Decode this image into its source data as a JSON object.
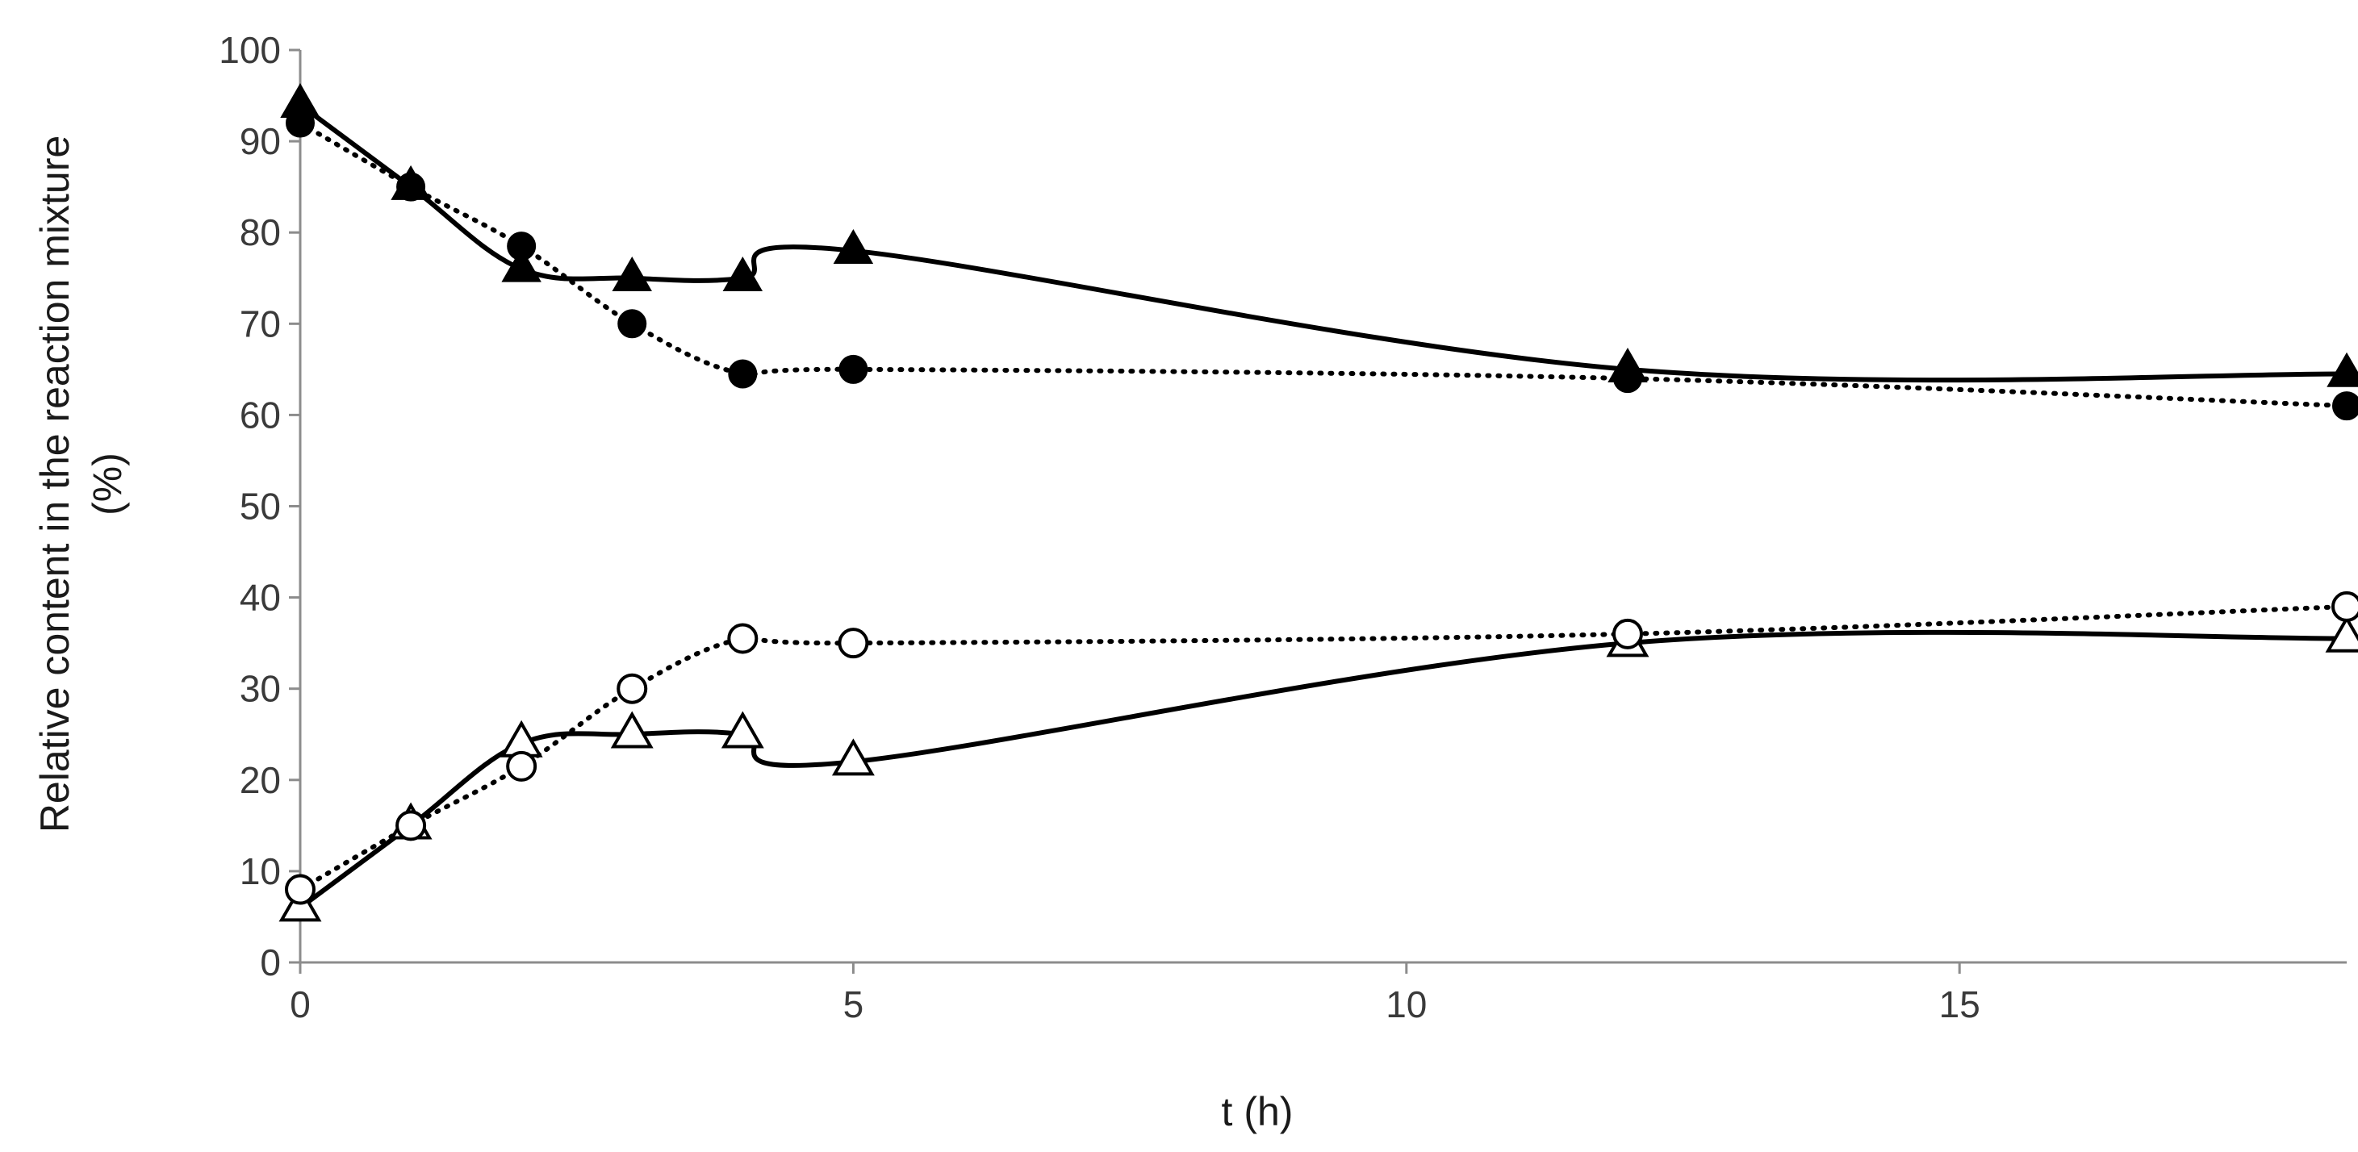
{
  "chart_data": {
    "type": "line",
    "title": "",
    "xlabel": "t (h)",
    "ylabel_line1": "Relative content in the reaction mixture",
    "ylabel_line2": "(%)",
    "xlim": [
      0,
      18.5
    ],
    "ylim": [
      0,
      100
    ],
    "x_ticks": [
      0,
      5,
      10,
      15
    ],
    "y_ticks": [
      0,
      10,
      20,
      30,
      40,
      50,
      60,
      70,
      80,
      90,
      100
    ],
    "grid": false,
    "legend": "none",
    "colors": {
      "series": "#000000",
      "axis": "#8c8c8c",
      "open_fill": "#ffffff"
    },
    "series": [
      {
        "marker": "filled-triangle",
        "line": "solid",
        "x": [
          0,
          1,
          2,
          3,
          4,
          5,
          12,
          18.5
        ],
        "y": [
          94,
          85,
          76,
          75,
          75,
          78,
          65,
          64.5
        ]
      },
      {
        "marker": "filled-circle",
        "line": "dotted",
        "x": [
          0,
          1,
          2,
          3,
          4,
          5,
          12,
          18.5
        ],
        "y": [
          92,
          85,
          78.5,
          70,
          64.5,
          65,
          64,
          61
        ]
      },
      {
        "marker": "open-triangle",
        "line": "solid",
        "x": [
          0,
          1,
          2,
          3,
          4,
          5,
          12,
          18.5
        ],
        "y": [
          6,
          15,
          24,
          25,
          25,
          22,
          35,
          35.5
        ]
      },
      {
        "marker": "open-circle",
        "line": "dotted",
        "x": [
          0,
          1,
          2,
          3,
          4,
          5,
          12,
          18.5
        ],
        "y": [
          8,
          15,
          21.5,
          30,
          35.5,
          35,
          36,
          39
        ]
      }
    ]
  }
}
